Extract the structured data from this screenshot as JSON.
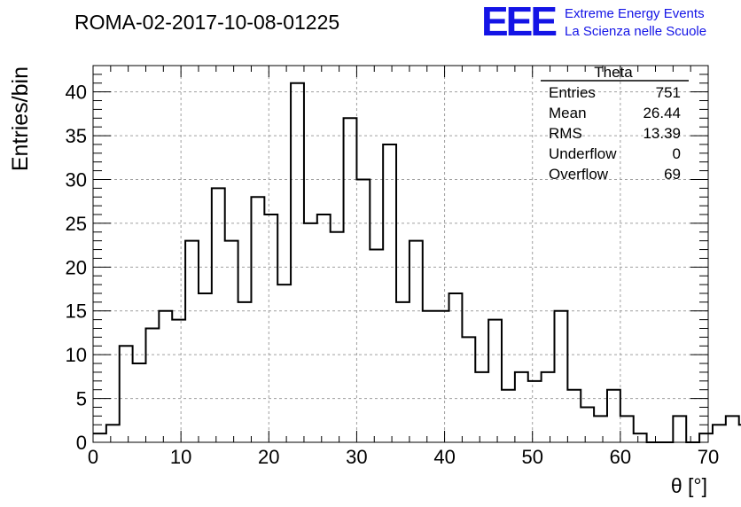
{
  "header": {
    "run_title": "ROMA-02-2017-10-08-01225",
    "logo_text": "EEE",
    "logo_line1": "Extreme Energy Events",
    "logo_line2": "La Scienza nelle Scuole",
    "logo_color": "#1414e6"
  },
  "stats_box": {
    "title": "Theta",
    "rows": [
      {
        "label": "Entries",
        "value": "751"
      },
      {
        "label": "Mean",
        "value": "26.44"
      },
      {
        "label": "RMS",
        "value": "13.39"
      },
      {
        "label": "Underflow",
        "value": "0"
      },
      {
        "label": "Overflow",
        "value": "69"
      }
    ]
  },
  "chart_data": {
    "type": "bar",
    "style": "step-histogram",
    "xlabel": "θ [°]",
    "ylabel": "Entries/bin",
    "xlim": [
      0,
      70
    ],
    "ylim": [
      0,
      43
    ],
    "grid": true,
    "bin_width": 1.5,
    "x_ticks": [
      0,
      10,
      20,
      30,
      40,
      50,
      60,
      70
    ],
    "y_ticks": [
      0,
      5,
      10,
      15,
      20,
      25,
      30,
      35,
      40
    ],
    "values": [
      1,
      2,
      11,
      9,
      13,
      15,
      14,
      23,
      17,
      29,
      23,
      16,
      28,
      26,
      18,
      41,
      25,
      26,
      24,
      37,
      30,
      22,
      34,
      16,
      23,
      15,
      15,
      17,
      12,
      8,
      14,
      6,
      8,
      7,
      8,
      15,
      6,
      4,
      3,
      6,
      3,
      1,
      0,
      0,
      3,
      0,
      1,
      2,
      3,
      2
    ]
  }
}
